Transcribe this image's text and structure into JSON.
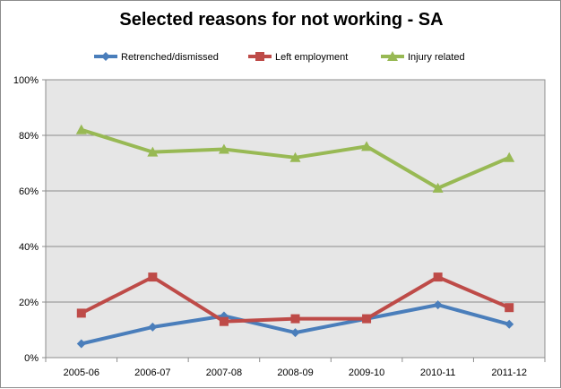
{
  "chart_data": {
    "type": "line",
    "title": "Selected reasons for not working - SA",
    "xlabel": "",
    "ylabel": "",
    "categories": [
      "2005-06",
      "2006-07",
      "2007-08",
      "2008-09",
      "2009-10",
      "2010-11",
      "2011-12"
    ],
    "ylim": [
      0,
      100
    ],
    "yticks": [
      "0%",
      "20%",
      "40%",
      "60%",
      "80%",
      "100%"
    ],
    "grid": true,
    "legend_position": "top",
    "series": [
      {
        "name": "Retrenched/dismissed",
        "color": "#4a7ebb",
        "marker": "diamond",
        "values": [
          5,
          11,
          15,
          9,
          14,
          19,
          12
        ]
      },
      {
        "name": "Left employment",
        "color": "#be4b48",
        "marker": "square",
        "values": [
          16,
          29,
          13,
          14,
          14,
          29,
          18
        ]
      },
      {
        "name": "Injury related",
        "color": "#98b954",
        "marker": "triangle",
        "values": [
          82,
          74,
          75,
          72,
          76,
          61,
          72
        ]
      }
    ]
  }
}
